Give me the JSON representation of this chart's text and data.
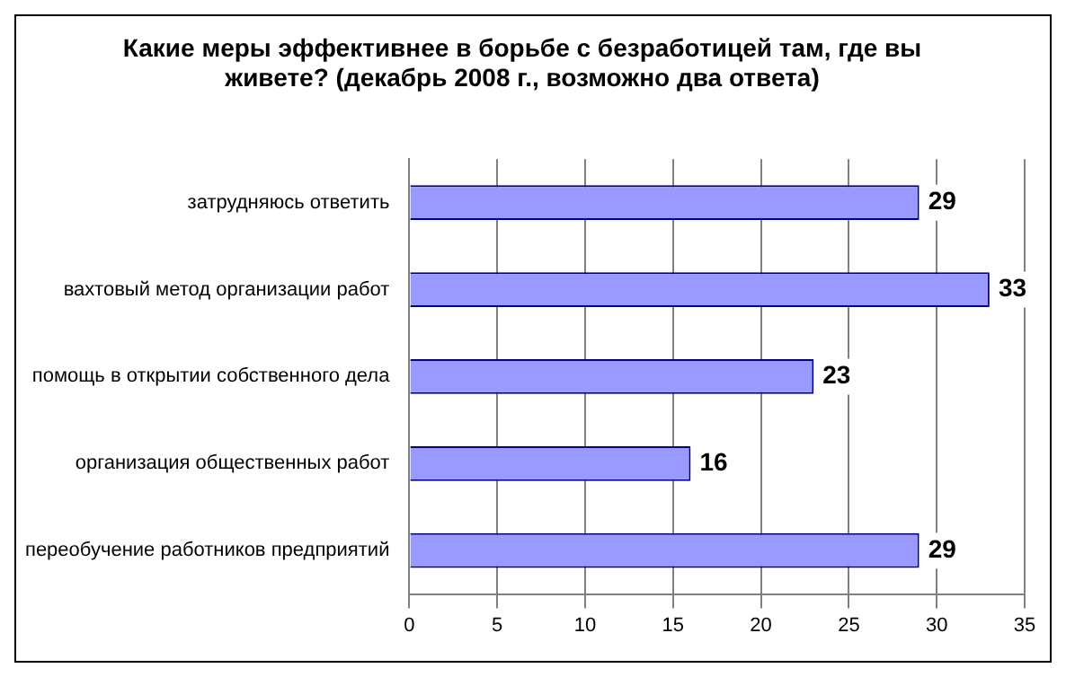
{
  "chart_data": {
    "type": "bar",
    "orientation": "horizontal",
    "title": "Какие меры эффективнее в борьбе с безработицей там, где вы живете? (декабрь 2008 г., возможно два ответа)",
    "categories": [
      "затрудняюсь ответить",
      "вахтовый метод организации работ",
      "помощь в открытии собственного дела",
      "организация общественных работ",
      "переобучение работников предприятий"
    ],
    "values": [
      29,
      33,
      23,
      16,
      29
    ],
    "color": "#9999ff",
    "xlim": [
      0,
      35
    ],
    "xticks": [
      0,
      5,
      10,
      15,
      20,
      25,
      30,
      35
    ],
    "grid": "x",
    "data_labels": true,
    "legend": false
  }
}
